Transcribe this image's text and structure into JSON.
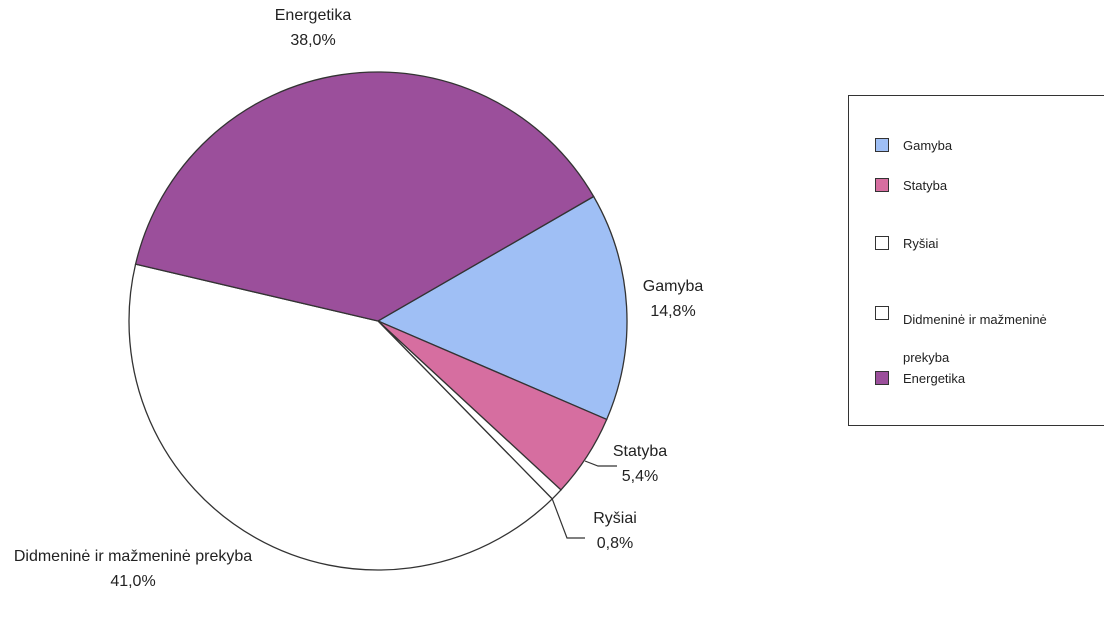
{
  "chart_data": {
    "type": "pie",
    "categories": [
      "Gamyba",
      "Statyba",
      "Ryšiai",
      "Didmeninė ir mažmeninė prekyba",
      "Energetika"
    ],
    "values": [
      14.8,
      5.4,
      0.8,
      41.0,
      38.0
    ],
    "value_labels": [
      "14,8%",
      "5,4%",
      "0,8%",
      "41,0%",
      "38,0%"
    ],
    "colors": [
      "#9fbff5",
      "#d66ea0",
      "#ffffff",
      "#ffffff",
      "#9b4f9b"
    ],
    "legend": "right"
  }
}
